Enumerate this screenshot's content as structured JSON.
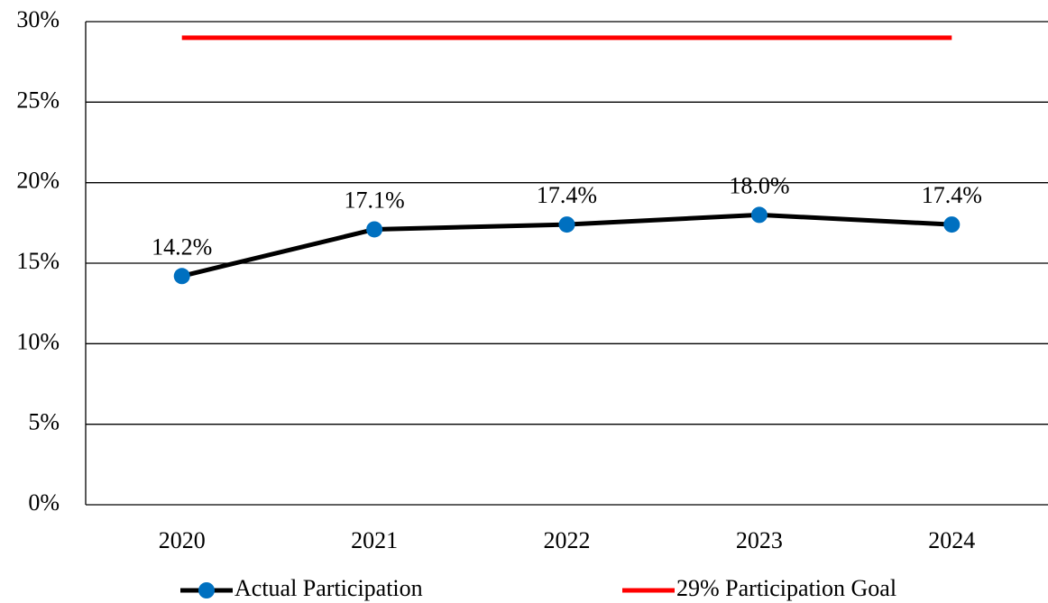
{
  "chart_data": {
    "type": "line",
    "categories": [
      "2020",
      "2021",
      "2022",
      "2023",
      "2024"
    ],
    "series": [
      {
        "name": "Actual Participation",
        "color": "#000000",
        "marker_color": "#0070c0",
        "values": [
          14.2,
          17.1,
          17.4,
          18.0,
          17.4
        ],
        "value_labels": [
          "14.2%",
          "17.1%",
          "17.4%",
          "18.0%",
          "17.4%"
        ]
      },
      {
        "name": "29% Participation Goal",
        "color": "#ff0000",
        "values": [
          29,
          29,
          29,
          29,
          29
        ]
      }
    ],
    "ylim": [
      0,
      30
    ],
    "yticks": [
      {
        "value": 0,
        "label": "0%"
      },
      {
        "value": 5,
        "label": "5%"
      },
      {
        "value": 10,
        "label": "10%"
      },
      {
        "value": 15,
        "label": "15%"
      },
      {
        "value": 20,
        "label": "20%"
      },
      {
        "value": 25,
        "label": "25%"
      },
      {
        "value": 30,
        "label": "30%"
      }
    ],
    "grid": true,
    "legend": "bottom"
  }
}
